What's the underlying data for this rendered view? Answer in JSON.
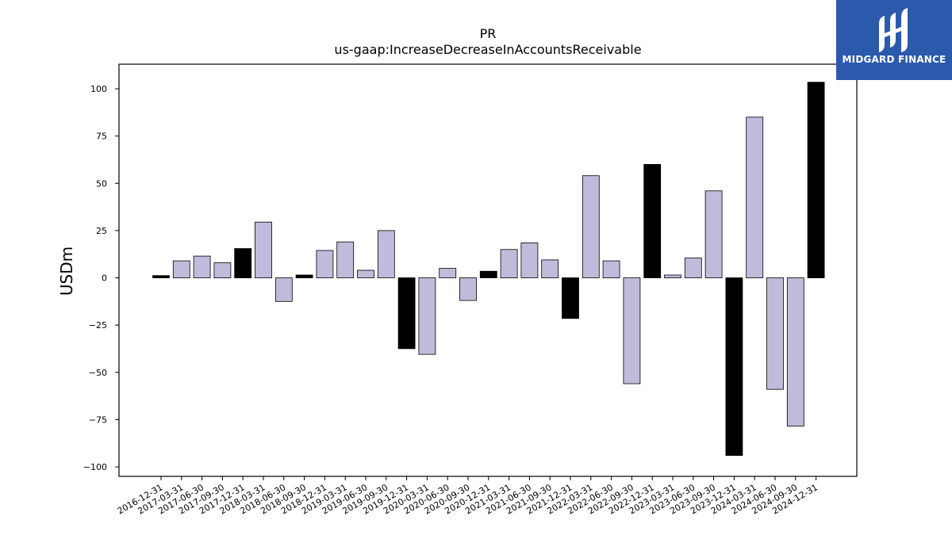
{
  "chart_data": {
    "type": "bar",
    "title": "PR",
    "subtitle": "us-gaap:IncreaseDecreaseInAccountsReceivable",
    "xlabel": "",
    "ylabel": "USDm",
    "ylim": [
      -105,
      113
    ],
    "yticks": [
      100,
      75,
      50,
      25,
      0,
      -25,
      -50,
      -75,
      -100
    ],
    "ytick_labels": [
      "100",
      "75",
      "50",
      "25",
      "0",
      "−25",
      "−50",
      "−75",
      "−100"
    ],
    "grid": false,
    "legend": "none",
    "colors": {
      "highlight": "#000000",
      "default": "#bebbdb"
    },
    "categories": [
      "2016-12-31",
      "2017-03-31",
      "2017-06-30",
      "2017-09-30",
      "2017-12-31",
      "2018-03-31",
      "2018-06-30",
      "2018-09-30",
      "2018-12-31",
      "2019-03-31",
      "2019-06-30",
      "2019-09-30",
      "2019-12-31",
      "2020-03-31",
      "2020-06-30",
      "2020-09-30",
      "2020-12-31",
      "2021-03-31",
      "2021-06-30",
      "2021-09-30",
      "2021-12-31",
      "2022-03-31",
      "2022-06-30",
      "2022-09-30",
      "2022-12-31",
      "2023-03-31",
      "2023-06-30",
      "2023-09-30",
      "2023-12-31",
      "2024-03-31",
      "2024-06-30",
      "2024-09-30",
      "2024-12-31"
    ],
    "values": [
      1.2,
      9,
      11.5,
      8,
      15.5,
      29.5,
      -12.5,
      1.5,
      14.5,
      19,
      4,
      25,
      -37.5,
      -40.5,
      5,
      -12,
      3.5,
      15,
      18.5,
      9.5,
      -21.5,
      54,
      9,
      -56,
      60,
      1.5,
      10.5,
      46,
      -94,
      85,
      -59,
      -78.5,
      103.5
    ],
    "highlight": [
      true,
      false,
      false,
      false,
      true,
      false,
      false,
      true,
      false,
      false,
      false,
      false,
      true,
      false,
      false,
      false,
      true,
      false,
      false,
      false,
      true,
      false,
      false,
      false,
      true,
      false,
      false,
      false,
      true,
      false,
      false,
      false,
      true
    ]
  },
  "logo": {
    "text": "MIDGARD FINANCE",
    "icon": "midgard-logo-icon"
  }
}
